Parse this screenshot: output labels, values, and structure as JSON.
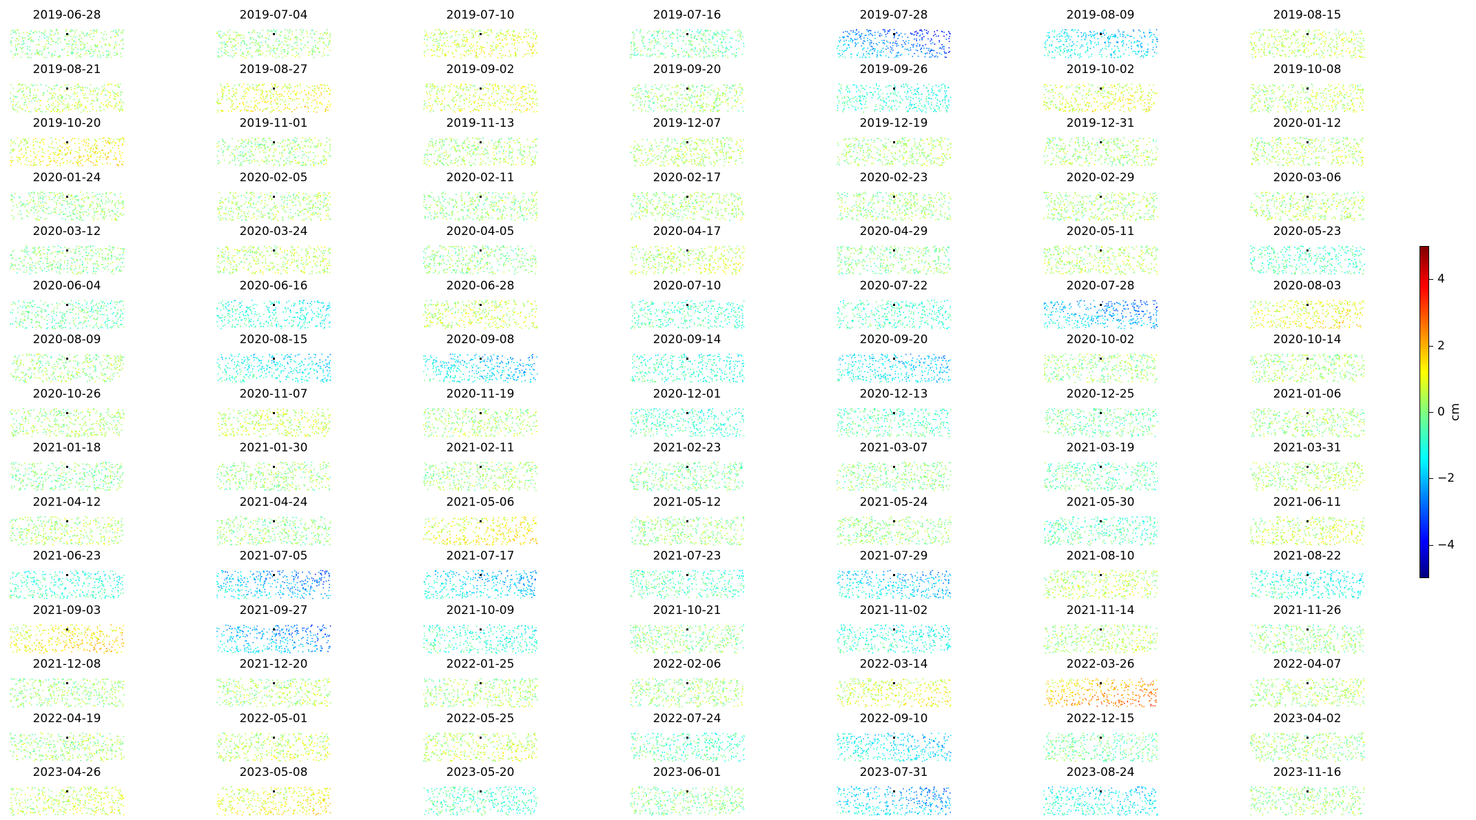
{
  "chart_data": {
    "type": "heatmap",
    "description_of_panels": "small-multiple scatter maps of displacement, one per acquisition date; each point colored by displacement value; black reference point in each panel",
    "panels": [
      {
        "title": "2019-06-28",
        "tone": 0.1
      },
      {
        "title": "2019-07-04",
        "tone": 0.2
      },
      {
        "title": "2019-07-10",
        "tone": 0.8
      },
      {
        "title": "2019-07-16",
        "tone": -0.2
      },
      {
        "title": "2019-07-28",
        "tone": -2.5
      },
      {
        "title": "2019-08-09",
        "tone": -1.5
      },
      {
        "title": "2019-08-15",
        "tone": 0.5
      },
      {
        "title": "2019-08-21",
        "tone": 0.5
      },
      {
        "title": "2019-08-27",
        "tone": 1.0
      },
      {
        "title": "2019-09-02",
        "tone": 0.8
      },
      {
        "title": "2019-09-20",
        "tone": 0.2
      },
      {
        "title": "2019-09-26",
        "tone": -0.8
      },
      {
        "title": "2019-10-02",
        "tone": 0.9
      },
      {
        "title": "2019-10-08",
        "tone": 0.5
      },
      {
        "title": "2019-10-20",
        "tone": 1.1
      },
      {
        "title": "2019-11-01",
        "tone": 0.3
      },
      {
        "title": "2019-11-13",
        "tone": 0.3
      },
      {
        "title": "2019-12-07",
        "tone": 0.4
      },
      {
        "title": "2019-12-19",
        "tone": 0.3
      },
      {
        "title": "2019-12-31",
        "tone": 0.3
      },
      {
        "title": "2020-01-12",
        "tone": 0.4
      },
      {
        "title": "2020-01-24",
        "tone": 0.2
      },
      {
        "title": "2020-02-05",
        "tone": 0.3
      },
      {
        "title": "2020-02-11",
        "tone": 0.2
      },
      {
        "title": "2020-02-17",
        "tone": 0.3
      },
      {
        "title": "2020-02-23",
        "tone": 0.2
      },
      {
        "title": "2020-02-29",
        "tone": 0.3
      },
      {
        "title": "2020-03-06",
        "tone": 0.4
      },
      {
        "title": "2020-03-12",
        "tone": 0.0
      },
      {
        "title": "2020-03-24",
        "tone": 0.5
      },
      {
        "title": "2020-04-05",
        "tone": 0.1
      },
      {
        "title": "2020-04-17",
        "tone": 0.6
      },
      {
        "title": "2020-04-29",
        "tone": 0.0
      },
      {
        "title": "2020-05-11",
        "tone": 0.4
      },
      {
        "title": "2020-05-23",
        "tone": -0.6
      },
      {
        "title": "2020-06-04",
        "tone": -0.3
      },
      {
        "title": "2020-06-16",
        "tone": -0.9
      },
      {
        "title": "2020-06-28",
        "tone": 0.6
      },
      {
        "title": "2020-07-10",
        "tone": -0.6
      },
      {
        "title": "2020-07-22",
        "tone": -0.6
      },
      {
        "title": "2020-07-28",
        "tone": -2.0
      },
      {
        "title": "2020-08-03",
        "tone": 1.0
      },
      {
        "title": "2020-08-09",
        "tone": 0.2
      },
      {
        "title": "2020-08-15",
        "tone": -1.2
      },
      {
        "title": "2020-09-08",
        "tone": -1.5
      },
      {
        "title": "2020-09-14",
        "tone": -0.8
      },
      {
        "title": "2020-09-20",
        "tone": -1.5
      },
      {
        "title": "2020-10-02",
        "tone": 0.2
      },
      {
        "title": "2020-10-14",
        "tone": 0.3
      },
      {
        "title": "2020-10-26",
        "tone": 0.3
      },
      {
        "title": "2020-11-07",
        "tone": 0.6
      },
      {
        "title": "2020-11-19",
        "tone": 0.3
      },
      {
        "title": "2020-12-01",
        "tone": -0.7
      },
      {
        "title": "2020-12-13",
        "tone": -0.5
      },
      {
        "title": "2020-12-25",
        "tone": -0.2
      },
      {
        "title": "2021-01-06",
        "tone": 0.2
      },
      {
        "title": "2021-01-18",
        "tone": 0.0
      },
      {
        "title": "2021-01-30",
        "tone": 0.2
      },
      {
        "title": "2021-02-11",
        "tone": 0.2
      },
      {
        "title": "2021-02-23",
        "tone": -0.1
      },
      {
        "title": "2021-03-07",
        "tone": 0.1
      },
      {
        "title": "2021-03-19",
        "tone": -0.3
      },
      {
        "title": "2021-03-31",
        "tone": 0.4
      },
      {
        "title": "2021-04-12",
        "tone": 0.4
      },
      {
        "title": "2021-04-24",
        "tone": 0.1
      },
      {
        "title": "2021-05-06",
        "tone": 1.1
      },
      {
        "title": "2021-05-12",
        "tone": 0.2
      },
      {
        "title": "2021-05-24",
        "tone": 0.1
      },
      {
        "title": "2021-05-30",
        "tone": -0.5
      },
      {
        "title": "2021-06-11",
        "tone": 0.6
      },
      {
        "title": "2021-06-23",
        "tone": -0.8
      },
      {
        "title": "2021-07-05",
        "tone": -2.0
      },
      {
        "title": "2021-07-17",
        "tone": -1.6
      },
      {
        "title": "2021-07-23",
        "tone": -0.5
      },
      {
        "title": "2021-07-29",
        "tone": -1.6
      },
      {
        "title": "2021-08-10",
        "tone": 0.5
      },
      {
        "title": "2021-08-22",
        "tone": -1.0
      },
      {
        "title": "2021-09-03",
        "tone": 1.3
      },
      {
        "title": "2021-09-27",
        "tone": -2.0
      },
      {
        "title": "2021-10-09",
        "tone": -0.8
      },
      {
        "title": "2021-10-21",
        "tone": 0.1
      },
      {
        "title": "2021-11-02",
        "tone": -0.9
      },
      {
        "title": "2021-11-14",
        "tone": 0.4
      },
      {
        "title": "2021-11-26",
        "tone": 0.1
      },
      {
        "title": "2021-12-08",
        "tone": 0.2
      },
      {
        "title": "2021-12-20",
        "tone": 0.4
      },
      {
        "title": "2022-01-25",
        "tone": 0.3
      },
      {
        "title": "2022-02-06",
        "tone": 0.2
      },
      {
        "title": "2022-03-14",
        "tone": 0.9
      },
      {
        "title": "2022-03-26",
        "tone": 2.0
      },
      {
        "title": "2022-04-07",
        "tone": 0.3
      },
      {
        "title": "2022-04-19",
        "tone": 0.3
      },
      {
        "title": "2022-05-01",
        "tone": 0.6
      },
      {
        "title": "2022-05-25",
        "tone": 0.6
      },
      {
        "title": "2022-07-24",
        "tone": -0.5
      },
      {
        "title": "2022-09-10",
        "tone": -1.4
      },
      {
        "title": "2022-12-15",
        "tone": -0.2
      },
      {
        "title": "2023-04-02",
        "tone": 0.2
      },
      {
        "title": "2023-04-26",
        "tone": 0.6
      },
      {
        "title": "2023-05-08",
        "tone": 1.0
      },
      {
        "title": "2023-05-20",
        "tone": -0.6
      },
      {
        "title": "2023-06-01",
        "tone": 0.0
      },
      {
        "title": "2023-07-31",
        "tone": -1.8
      },
      {
        "title": "2023-08-24",
        "tone": -1.2
      },
      {
        "title": "2023-11-16",
        "tone": 0.2
      }
    ],
    "colorbar": {
      "label": "cm",
      "vmin": -5,
      "vmax": 5,
      "ticks": [
        4,
        2,
        0,
        -2,
        -4
      ],
      "tick_labels": [
        "4",
        "2",
        "0",
        "−2",
        "−4"
      ],
      "colormap": "jet"
    },
    "grid": false,
    "legend": "none"
  }
}
